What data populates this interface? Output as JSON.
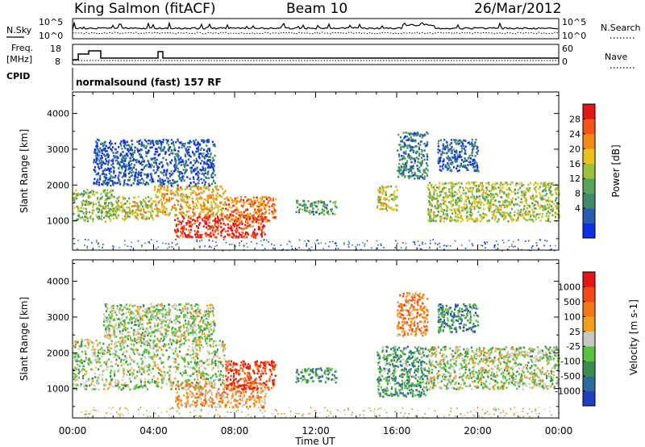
{
  "header": {
    "station": "King Salmon (fitACF)",
    "beam": "Beam 10",
    "date": "26/Mar/2012"
  },
  "noise_panel": {
    "left_label": "N.Sky",
    "right_label": "N.Search",
    "ticks": [
      "10^5",
      "10^0"
    ]
  },
  "freq_panel": {
    "left_label_1": "Freq.",
    "left_label_2": "[MHz]",
    "left_ticks": [
      "18",
      "8"
    ],
    "right_label": "Nave",
    "right_ticks": [
      "60",
      "0"
    ]
  },
  "cpid": {
    "label": "CPID",
    "value": "normalsound (fast) 157 RF"
  },
  "axes": {
    "ylabel": "Slant Range [km]",
    "xlabel": "Time UT",
    "y_ticks": [
      "4000",
      "3000",
      "2000",
      "1000"
    ],
    "x_ticks": [
      "00:00",
      "04:00",
      "08:00",
      "12:00",
      "16:00",
      "20:00",
      "00:00"
    ]
  },
  "colors": {
    "power": [
      "#1030e0",
      "#2a5cb0",
      "#3f8a6a",
      "#5aa05a",
      "#9ac040",
      "#e8c020",
      "#f08a18",
      "#f05418",
      "#e01818"
    ],
    "velocity": [
      "#2040c0",
      "#2f6a9a",
      "#3f8a50",
      "#5ac040",
      "#c8c8c0",
      "#f0a020",
      "#f07818",
      "#f04a18",
      "#e01818"
    ]
  },
  "chart_data": [
    {
      "type": "heatmap",
      "title": "Power",
      "colorbar_label": "Power [dB]",
      "colorbar_ticks": [
        "28",
        "24",
        "20",
        "16",
        "12",
        "8",
        "4"
      ],
      "xlabel": "Time UT",
      "ylabel": "Slant Range [km]",
      "xlim": [
        0,
        24
      ],
      "ylim": [
        180,
        4600
      ],
      "regions": [
        {
          "t": [
            0.0,
            2.0
          ],
          "r": [
            1000,
            1900
          ],
          "level": 0.45
        },
        {
          "t": [
            2.0,
            4.0
          ],
          "r": [
            1050,
            1700
          ],
          "level": 0.55
        },
        {
          "t": [
            4.0,
            7.5
          ],
          "r": [
            1150,
            2000
          ],
          "level": 0.65
        },
        {
          "t": [
            5.0,
            9.5
          ],
          "r": [
            550,
            1200
          ],
          "level": 0.92
        },
        {
          "t": [
            7.5,
            10.0
          ],
          "r": [
            1000,
            1700
          ],
          "level": 0.75
        },
        {
          "t": [
            1.0,
            7.0
          ],
          "r": [
            2000,
            3300
          ],
          "level": 0.15
        },
        {
          "t": [
            11.0,
            13.0
          ],
          "r": [
            1200,
            1600
          ],
          "level": 0.35
        },
        {
          "t": [
            15.0,
            16.0
          ],
          "r": [
            1300,
            2000
          ],
          "level": 0.55
        },
        {
          "t": [
            16.0,
            17.5
          ],
          "r": [
            2200,
            3500
          ],
          "level": 0.25
        },
        {
          "t": [
            17.5,
            24.0
          ],
          "r": [
            1000,
            2100
          ],
          "level": 0.5
        },
        {
          "t": [
            18.0,
            20.0
          ],
          "r": [
            2400,
            3300
          ],
          "level": 0.2
        }
      ]
    },
    {
      "type": "heatmap",
      "title": "Velocity",
      "colorbar_label": "Velocity [m s-1]",
      "colorbar_ticks": [
        "1000",
        "500",
        "100",
        "25",
        "-25",
        "-100",
        "-500",
        "-1000"
      ],
      "xlabel": "Time UT",
      "ylabel": "Slant Range [km]",
      "xlim": [
        0,
        24
      ],
      "ylim": [
        180,
        4600
      ],
      "regions": [
        {
          "t": [
            0.0,
            7.5
          ],
          "r": [
            1000,
            2400
          ],
          "level": 0.45
        },
        {
          "t": [
            5.0,
            9.5
          ],
          "r": [
            500,
            1200
          ],
          "level": 0.63
        },
        {
          "t": [
            7.5,
            10.0
          ],
          "r": [
            1000,
            1800
          ],
          "level": 0.85
        },
        {
          "t": [
            1.5,
            7.0
          ],
          "r": [
            2400,
            3400
          ],
          "level": 0.45
        },
        {
          "t": [
            11.0,
            13.0
          ],
          "r": [
            1200,
            1600
          ],
          "level": 0.3
        },
        {
          "t": [
            15.0,
            17.5
          ],
          "r": [
            800,
            2200
          ],
          "level": 0.32
        },
        {
          "t": [
            16.0,
            17.5
          ],
          "r": [
            2500,
            3700
          ],
          "level": 0.7
        },
        {
          "t": [
            17.5,
            24.0
          ],
          "r": [
            1000,
            2200
          ],
          "level": 0.45
        },
        {
          "t": [
            18.0,
            20.0
          ],
          "r": [
            2600,
            3400
          ],
          "level": 0.25
        }
      ]
    }
  ]
}
